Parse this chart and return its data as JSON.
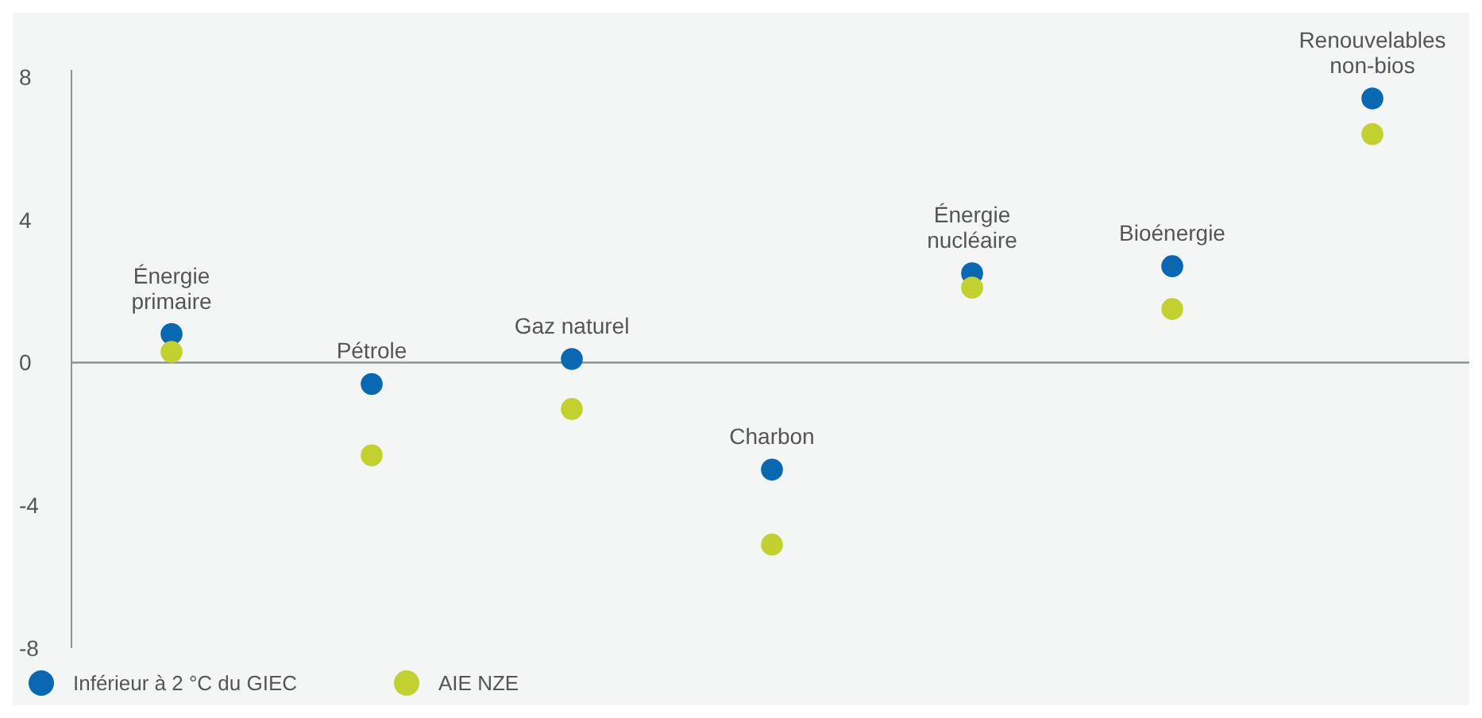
{
  "chart_data": {
    "type": "scatter",
    "categories": [
      "Énergie primaire",
      "Pétrole",
      "Gaz naturel",
      "Charbon",
      "Énergie nucléaire",
      "Bioénergie",
      "Renouvelables non-bios"
    ],
    "series": [
      {
        "name": "Inférieur à 2 °C du GIEC",
        "color": "#0a67b2",
        "values": [
          0.8,
          -0.6,
          0.1,
          -3.0,
          2.5,
          2.7,
          7.4
        ]
      },
      {
        "name": "AIE NZE",
        "color": "#c2d12f",
        "values": [
          0.3,
          -2.6,
          -1.3,
          -5.1,
          2.1,
          1.5,
          6.4
        ]
      }
    ],
    "ylim": [
      -8,
      8.2
    ],
    "yticks": [
      8,
      4,
      0,
      -4,
      -8
    ],
    "ref_lines": [
      {
        "axis": "y",
        "value": 0,
        "color": "#8c9496"
      }
    ],
    "grid": false,
    "legend": "bottom",
    "marker": "circle"
  }
}
